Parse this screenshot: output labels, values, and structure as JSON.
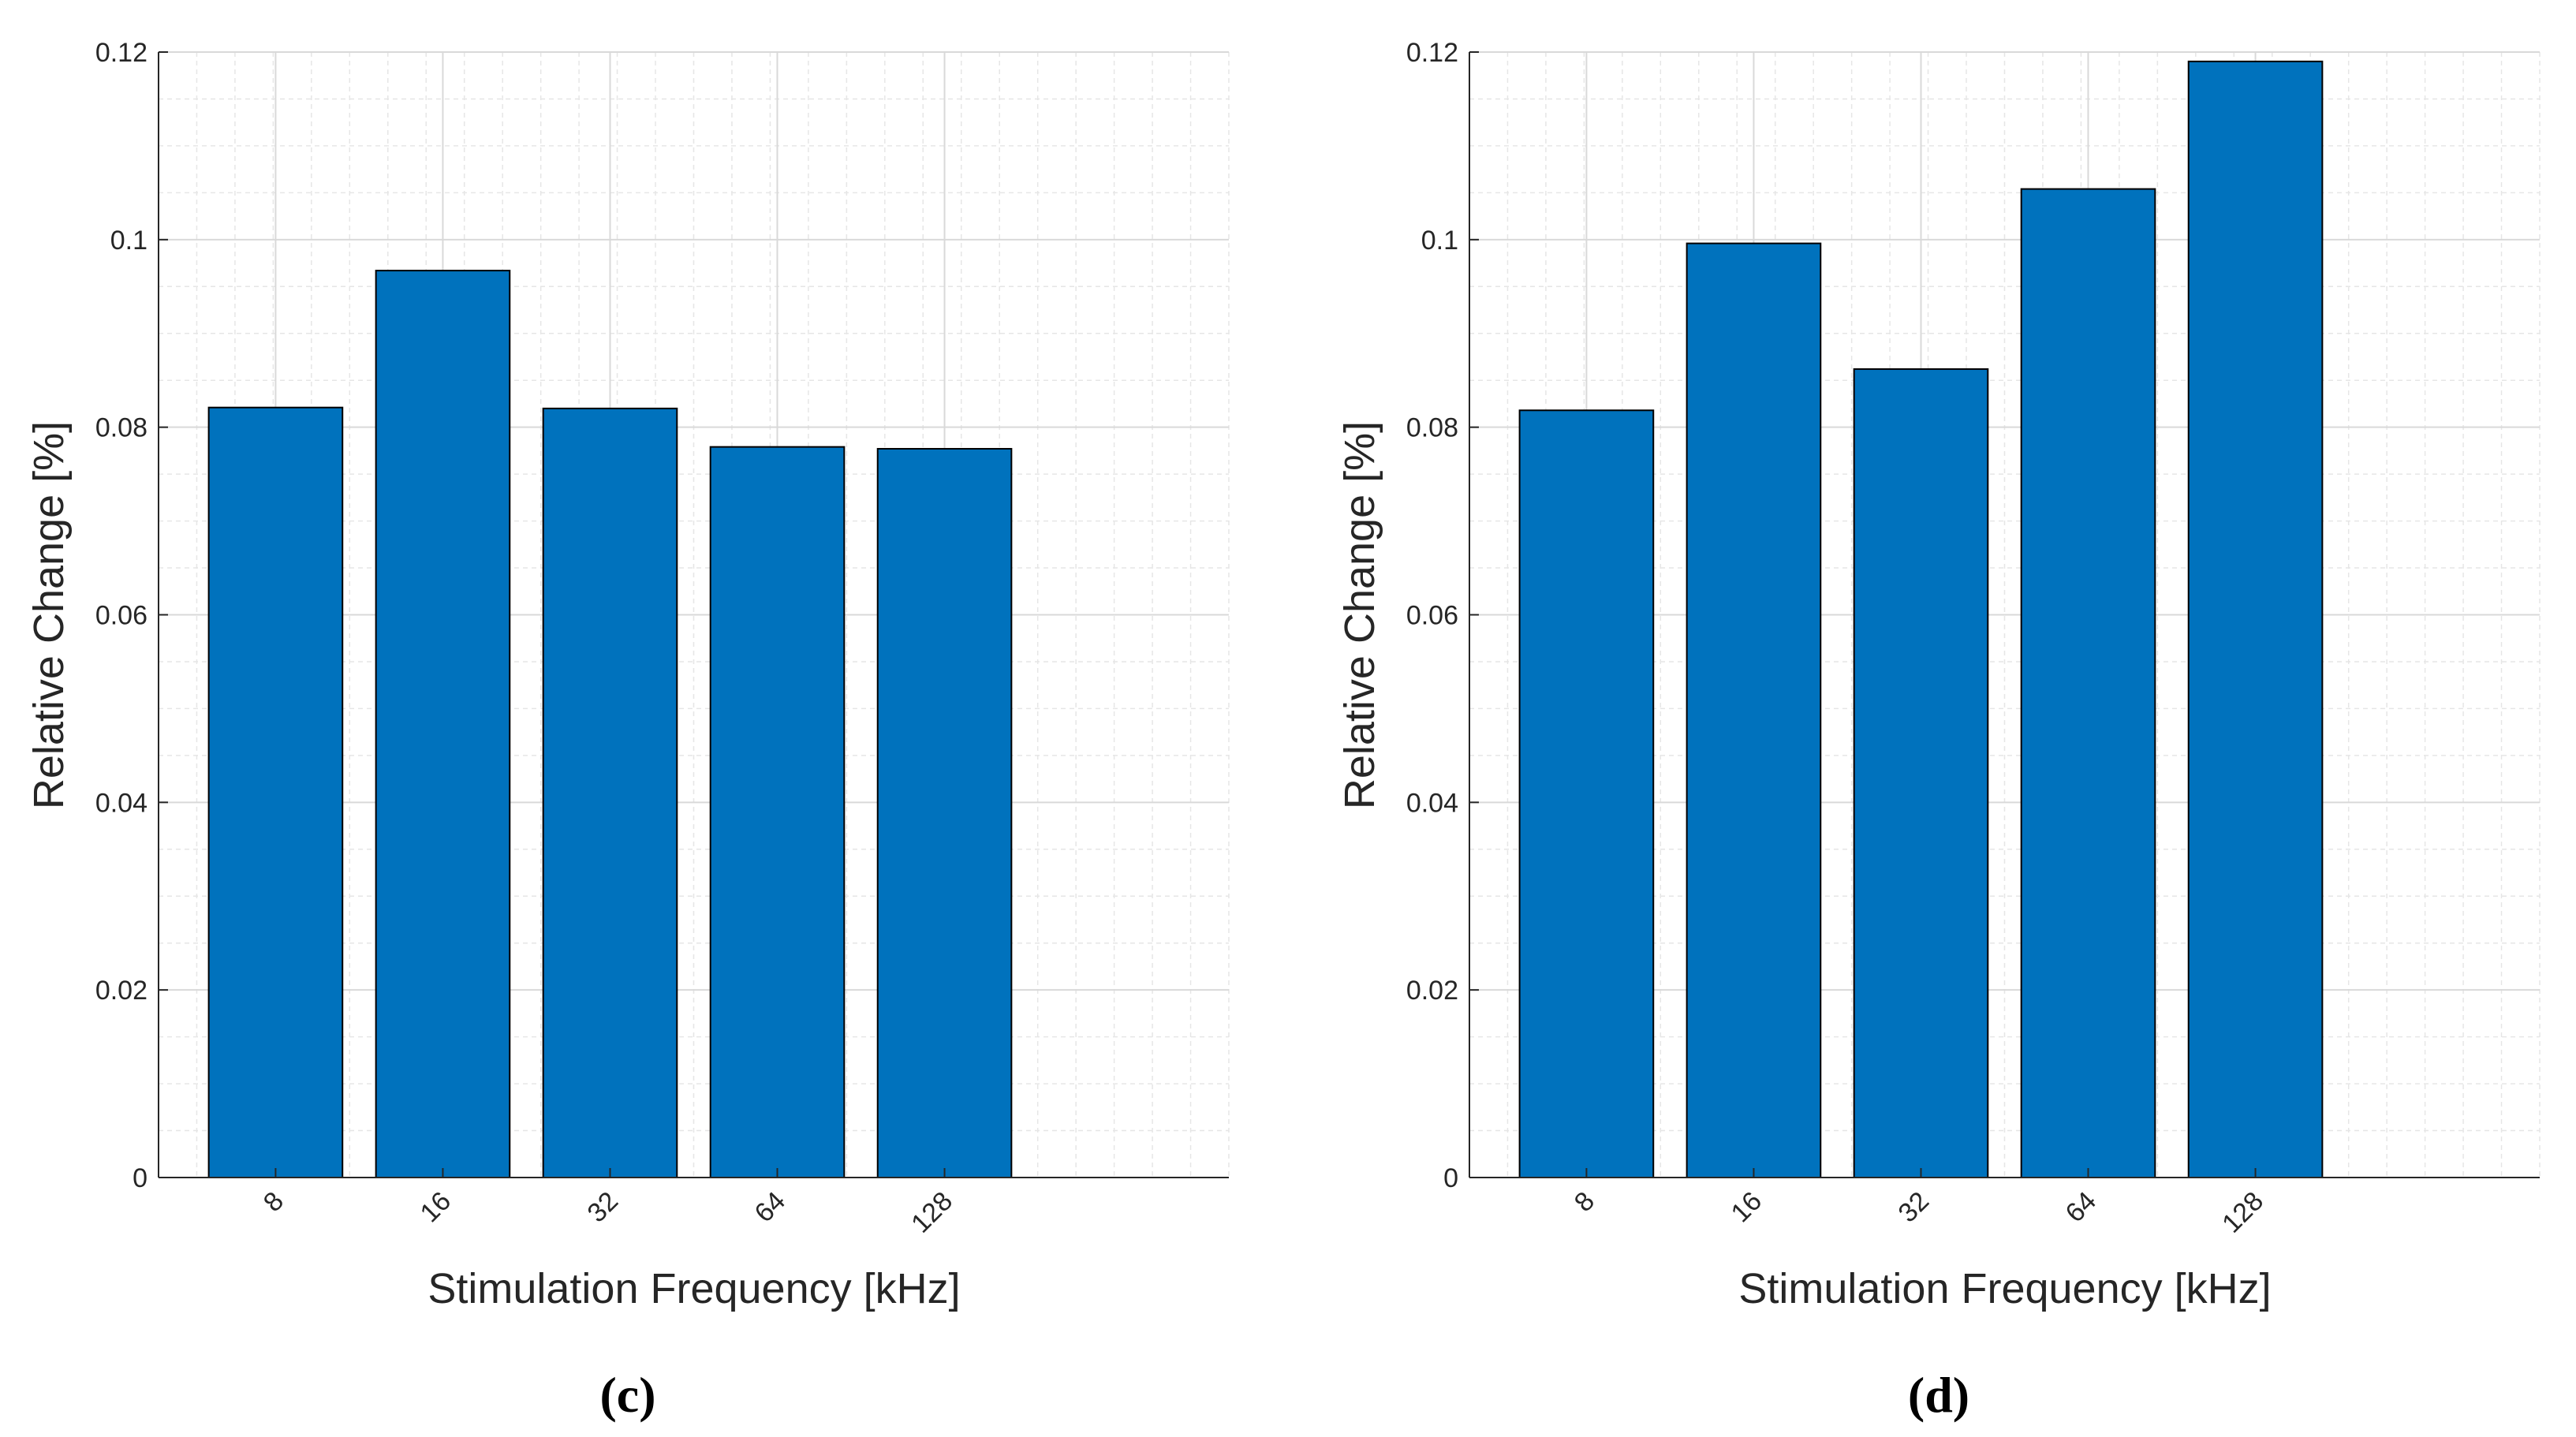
{
  "chart_data": [
    {
      "type": "bar",
      "panel_label": "(c)",
      "categories": [
        "8",
        "16",
        "32",
        "64",
        "128"
      ],
      "values": [
        0.0821,
        0.0967,
        0.082,
        0.0779,
        0.0777
      ],
      "xlabel": "Stimulation Frequency [kHz]",
      "ylabel": "Relative Change [%]",
      "ylim": [
        0,
        0.12
      ],
      "yticks": [
        "0",
        "0.02",
        "0.04",
        "0.06",
        "0.08",
        "0.1",
        "0.12"
      ],
      "grid": true,
      "minor_grid": true,
      "bar_color": "#0072BD"
    },
    {
      "type": "bar",
      "panel_label": "(d)",
      "categories": [
        "8",
        "16",
        "32",
        "64",
        "128"
      ],
      "values": [
        0.0818,
        0.0996,
        0.0862,
        0.1054,
        0.119
      ],
      "xlabel": "Stimulation Frequency [kHz]",
      "ylabel": "Relative Change [%]",
      "ylim": [
        0,
        0.12
      ],
      "yticks": [
        "0",
        "0.02",
        "0.04",
        "0.06",
        "0.08",
        "0.1",
        "0.12"
      ],
      "grid": true,
      "minor_grid": true,
      "bar_color": "#0072BD"
    }
  ]
}
